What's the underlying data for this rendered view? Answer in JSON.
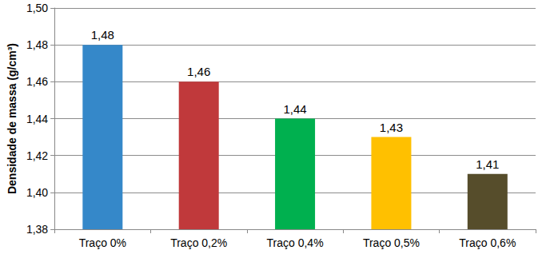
{
  "chart_data": {
    "type": "bar",
    "y_label": "Densidade de massa (g/cm³)",
    "categories": [
      "Traço 0%",
      "Traço 0,2%",
      "Traço 0,4%",
      "Traço 0,5%",
      "Traço 0,6%"
    ],
    "values": [
      1.48,
      1.46,
      1.44,
      1.43,
      1.41
    ],
    "value_labels": [
      "1,48",
      "1,46",
      "1,44",
      "1,43",
      "1,41"
    ],
    "colors": [
      "#3588c9",
      "#c0393b",
      "#00b04f",
      "#ffc000",
      "#564d2b"
    ],
    "ylim": [
      1.38,
      1.5
    ],
    "yticks": [
      {
        "value": 1.38,
        "label": "1,38"
      },
      {
        "value": 1.4,
        "label": "1,40"
      },
      {
        "value": 1.42,
        "label": "1,42"
      },
      {
        "value": 1.44,
        "label": "1,44"
      },
      {
        "value": 1.46,
        "label": "1,46"
      },
      {
        "value": 1.48,
        "label": "1,48"
      },
      {
        "value": 1.5,
        "label": "1,50"
      }
    ],
    "grid": true,
    "data_labels": true
  }
}
